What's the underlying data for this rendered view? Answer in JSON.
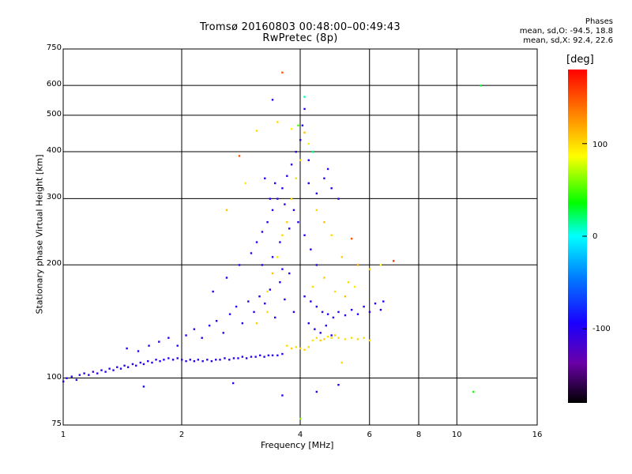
{
  "header": {
    "title_line1": "Tromsø 20160803 00:48:00–00:49:43",
    "title_line2": "RwPretec (8p)"
  },
  "stats": {
    "heading": "Phases",
    "line_o": "mean, sd,O: -94.5, 18.8",
    "line_x": "mean, sd,X:  92.4, 22.6"
  },
  "colorbar": {
    "unit_label": "[deg]",
    "ticks": [
      "100",
      "0",
      "-100"
    ],
    "range": [
      -180,
      180
    ]
  },
  "chart_data": {
    "type": "scatter",
    "title": "Tromsø 20160803 00:48:00–00:49:43",
    "subtitle": "RwPretec (8p)",
    "xlabel": "Frequency [MHz]",
    "ylabel": "Stationary phase Virtual Height [km]",
    "x_scale": "log",
    "y_scale": "log",
    "xlim": [
      1,
      16
    ],
    "ylim": [
      75,
      750
    ],
    "x_ticks": [
      1,
      2,
      4,
      6,
      8,
      10,
      16
    ],
    "x_tick_labels": [
      "1",
      "2",
      "4",
      "6",
      "8",
      "10",
      "16"
    ],
    "y_ticks": [
      75,
      100,
      200,
      300,
      400,
      500,
      600,
      750
    ],
    "y_tick_labels": [
      "75",
      "100",
      "200",
      "300",
      "400",
      "500",
      "600",
      "750"
    ],
    "grid": true,
    "color_scale": "phase [deg], -180 to 180 rainbow",
    "series": [
      {
        "points": [
          [
            1.0,
            98,
            -100
          ],
          [
            1.02,
            100,
            -95
          ],
          [
            1.05,
            101,
            -110
          ],
          [
            1.08,
            99,
            -100
          ],
          [
            1.1,
            102,
            -105
          ],
          [
            1.13,
            103,
            -98
          ],
          [
            1.16,
            102,
            -100
          ],
          [
            1.19,
            104,
            -112
          ],
          [
            1.22,
            103,
            -100
          ],
          [
            1.25,
            105,
            -95
          ],
          [
            1.28,
            104,
            -105
          ],
          [
            1.31,
            106,
            -100
          ],
          [
            1.34,
            105,
            -108
          ],
          [
            1.37,
            107,
            -98
          ],
          [
            1.4,
            106,
            -100
          ],
          [
            1.43,
            108,
            -103
          ],
          [
            1.46,
            107,
            -97
          ],
          [
            1.5,
            109,
            -100
          ],
          [
            1.53,
            108,
            -110
          ],
          [
            1.57,
            110,
            -100
          ],
          [
            1.6,
            109,
            -95
          ],
          [
            1.64,
            111,
            -100
          ],
          [
            1.68,
            110,
            -105
          ],
          [
            1.72,
            112,
            -100
          ],
          [
            1.76,
            111,
            -98
          ],
          [
            1.8,
            112,
            -100
          ],
          [
            1.85,
            113,
            -104
          ],
          [
            1.9,
            112,
            -100
          ],
          [
            1.95,
            113,
            -96
          ],
          [
            2.0,
            112,
            -100
          ],
          [
            2.05,
            111,
            -102
          ],
          [
            2.1,
            112,
            -100
          ],
          [
            2.15,
            111,
            -98
          ],
          [
            2.2,
            112,
            -100
          ],
          [
            2.26,
            111,
            -103
          ],
          [
            2.32,
            112,
            -100
          ],
          [
            2.38,
            111,
            -97
          ],
          [
            2.44,
            112,
            -100
          ],
          [
            2.5,
            112,
            -105
          ],
          [
            2.57,
            113,
            -100
          ],
          [
            2.64,
            112,
            -98
          ],
          [
            2.71,
            113,
            -100
          ],
          [
            2.78,
            113,
            -102
          ],
          [
            2.85,
            114,
            -100
          ],
          [
            2.92,
            113,
            -96
          ],
          [
            3.0,
            114,
            -100
          ],
          [
            3.08,
            114,
            -104
          ],
          [
            3.16,
            115,
            -100
          ],
          [
            3.24,
            114,
            -98
          ],
          [
            3.32,
            115,
            -100
          ],
          [
            3.4,
            115,
            -102
          ],
          [
            3.5,
            115,
            -100
          ],
          [
            3.6,
            116,
            -97
          ],
          [
            1.45,
            120,
            -95
          ],
          [
            1.55,
            118,
            -100
          ],
          [
            1.65,
            122,
            -105
          ],
          [
            1.75,
            125,
            -98
          ],
          [
            1.85,
            128,
            -100
          ],
          [
            1.95,
            122,
            -92
          ],
          [
            2.05,
            130,
            -100
          ],
          [
            2.15,
            135,
            -105
          ],
          [
            2.25,
            128,
            -100
          ],
          [
            2.35,
            138,
            -95
          ],
          [
            2.45,
            142,
            -100
          ],
          [
            2.55,
            132,
            -108
          ],
          [
            2.65,
            148,
            -100
          ],
          [
            2.75,
            155,
            -95
          ],
          [
            2.85,
            140,
            -100
          ],
          [
            2.95,
            160,
            -105
          ],
          [
            3.05,
            150,
            -100
          ],
          [
            3.15,
            165,
            -98
          ],
          [
            3.25,
            158,
            -100
          ],
          [
            3.35,
            172,
            -102
          ],
          [
            3.45,
            145,
            -100
          ],
          [
            3.55,
            180,
            -96
          ],
          [
            3.65,
            162,
            -100
          ],
          [
            3.75,
            190,
            -104
          ],
          [
            3.85,
            150,
            -100
          ],
          [
            2.4,
            170,
            -100
          ],
          [
            2.6,
            185,
            -95
          ],
          [
            2.8,
            200,
            -100
          ],
          [
            3.0,
            215,
            -105
          ],
          [
            3.1,
            230,
            -100
          ],
          [
            3.2,
            245,
            -98
          ],
          [
            3.3,
            260,
            -100
          ],
          [
            3.4,
            280,
            -102
          ],
          [
            3.5,
            300,
            -100
          ],
          [
            3.6,
            320,
            -96
          ],
          [
            3.7,
            345,
            -100
          ],
          [
            3.8,
            370,
            -104
          ],
          [
            3.9,
            400,
            -100
          ],
          [
            4.0,
            430,
            -98
          ],
          [
            4.05,
            470,
            -100
          ],
          [
            4.1,
            520,
            -100
          ],
          [
            3.95,
            260,
            -100
          ],
          [
            4.1,
            240,
            -95
          ],
          [
            4.25,
            220,
            -100
          ],
          [
            4.4,
            200,
            -105
          ],
          [
            4.1,
            165,
            -100
          ],
          [
            4.25,
            160,
            -98
          ],
          [
            4.4,
            155,
            -100
          ],
          [
            4.55,
            150,
            -102
          ],
          [
            4.7,
            148,
            -100
          ],
          [
            4.85,
            145,
            -97
          ],
          [
            5.0,
            150,
            -100
          ],
          [
            5.2,
            147,
            -103
          ],
          [
            5.4,
            152,
            -100
          ],
          [
            5.6,
            148,
            -98
          ],
          [
            5.8,
            155,
            -100
          ],
          [
            6.0,
            150,
            -104
          ],
          [
            6.2,
            158,
            -100
          ],
          [
            6.4,
            152,
            -96
          ],
          [
            6.5,
            160,
            -100
          ],
          [
            4.2,
            140,
            -100
          ],
          [
            4.35,
            135,
            -95
          ],
          [
            4.5,
            132,
            -100
          ],
          [
            4.65,
            138,
            -105
          ],
          [
            4.8,
            130,
            -100
          ],
          [
            3.25,
            340,
            -100
          ],
          [
            3.35,
            300,
            -95
          ],
          [
            3.45,
            330,
            -100
          ],
          [
            3.65,
            290,
            -105
          ],
          [
            3.75,
            250,
            -100
          ],
          [
            3.55,
            230,
            -100
          ],
          [
            3.85,
            280,
            -98
          ],
          [
            4.2,
            330,
            -100
          ],
          [
            4.4,
            310,
            -102
          ],
          [
            4.6,
            340,
            -100
          ],
          [
            4.8,
            320,
            -96
          ],
          [
            5.0,
            300,
            -100
          ],
          [
            3.2,
            200,
            -100
          ],
          [
            3.4,
            210,
            -104
          ],
          [
            3.6,
            195,
            -100
          ],
          [
            1.6,
            95,
            -90
          ],
          [
            2.7,
            97,
            -100
          ],
          [
            4.4,
            92,
            -100
          ],
          [
            5.0,
            96,
            -95
          ],
          [
            3.6,
            90,
            -100
          ],
          [
            2.8,
            390,
            150
          ],
          [
            3.4,
            550,
            -100
          ],
          [
            4.2,
            380,
            -100
          ],
          [
            4.7,
            360,
            -110
          ]
        ]
      },
      {
        "points": [
          [
            3.7,
            122,
            100
          ],
          [
            3.8,
            120,
            105
          ],
          [
            3.9,
            121,
            98
          ],
          [
            4.0,
            120,
            100
          ],
          [
            4.1,
            119,
            102
          ],
          [
            4.2,
            121,
            100
          ],
          [
            4.3,
            126,
            95
          ],
          [
            4.4,
            128,
            100
          ],
          [
            4.5,
            126,
            105
          ],
          [
            4.6,
            127,
            100
          ],
          [
            4.7,
            129,
            97
          ],
          [
            4.8,
            128,
            100
          ],
          [
            4.9,
            130,
            103
          ],
          [
            5.0,
            128,
            100
          ],
          [
            5.2,
            127,
            98
          ],
          [
            5.4,
            128,
            100
          ],
          [
            5.6,
            127,
            102
          ],
          [
            5.8,
            128,
            100
          ],
          [
            6.0,
            126,
            96
          ],
          [
            3.3,
            170,
            100
          ],
          [
            3.4,
            190,
            110
          ],
          [
            3.5,
            210,
            95
          ],
          [
            3.6,
            240,
            100
          ],
          [
            3.7,
            260,
            105
          ],
          [
            3.8,
            300,
            100
          ],
          [
            3.9,
            340,
            98
          ],
          [
            4.0,
            380,
            100
          ],
          [
            4.1,
            450,
            110
          ],
          [
            4.2,
            420,
            95
          ],
          [
            3.5,
            480,
            100
          ],
          [
            3.8,
            460,
            90
          ],
          [
            4.4,
            280,
            100
          ],
          [
            4.6,
            260,
            110
          ],
          [
            4.8,
            240,
            100
          ],
          [
            5.1,
            210,
            105
          ],
          [
            5.3,
            180,
            100
          ],
          [
            5.6,
            200,
            120
          ],
          [
            6.0,
            195,
            100
          ],
          [
            6.4,
            200,
            90
          ],
          [
            3.1,
            455,
            100
          ],
          [
            2.6,
            280,
            110
          ],
          [
            2.9,
            330,
            95
          ],
          [
            3.3,
            150,
            100
          ],
          [
            3.1,
            140,
            105
          ],
          [
            4.9,
            170,
            100
          ],
          [
            5.2,
            165,
            110
          ],
          [
            5.5,
            175,
            95
          ],
          [
            4.3,
            175,
            100
          ],
          [
            4.6,
            185,
            105
          ],
          [
            3.6,
            650,
            150
          ],
          [
            5.1,
            110,
            100
          ],
          [
            4.0,
            78,
            60
          ],
          [
            11.5,
            600,
            30
          ],
          [
            11.0,
            92,
            40
          ],
          [
            6.9,
            205,
            160
          ],
          [
            5.4,
            235,
            150
          ],
          [
            4.3,
            400,
            20
          ],
          [
            3.95,
            470,
            50
          ],
          [
            4.1,
            560,
            10
          ]
        ]
      }
    ]
  }
}
